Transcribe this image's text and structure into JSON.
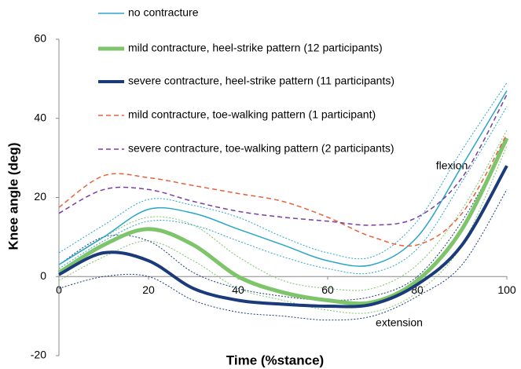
{
  "chart_data": {
    "type": "line",
    "xlabel": "Time (%stance)",
    "ylabel": "Knee angle (deg)",
    "xlim": [
      0,
      100
    ],
    "xticks": [
      0,
      20,
      40,
      60,
      80,
      100
    ],
    "ylim": [
      -20,
      60
    ],
    "yticks": [
      -20,
      0,
      20,
      40,
      60
    ],
    "annotations": [
      "flexion",
      "extension"
    ],
    "x": [
      0,
      10,
      20,
      30,
      40,
      50,
      60,
      70,
      80,
      90,
      100
    ],
    "series": [
      {
        "color": "#2aa5c9",
        "width": 1,
        "dash": "dotted",
        "values": [
          6,
          13,
          19.5,
          18,
          15,
          10,
          6,
          5,
          14,
          32,
          49
        ]
      },
      {
        "color": "#2aa5c9",
        "width": 1,
        "dash": "dotted",
        "values": [
          2,
          9,
          14,
          13,
          9,
          5,
          2,
          1,
          7,
          24,
          43
        ]
      },
      {
        "color": "#7dc46b",
        "width": 1,
        "dash": "dotted",
        "values": [
          3,
          10,
          15,
          13,
          5,
          -1,
          -3,
          -3,
          3,
          17,
          37
        ]
      },
      {
        "color": "#7dc46b",
        "width": 1,
        "dash": "dotted",
        "values": [
          -1,
          5,
          9,
          4,
          -3,
          -6,
          -8.5,
          -9,
          -4,
          8,
          33
        ]
      },
      {
        "color": "#1a3a7a",
        "width": 1,
        "dash": "dotted",
        "values": [
          3,
          10,
          9,
          1,
          -3,
          -5,
          -6,
          -5,
          0,
          14,
          34
        ]
      },
      {
        "color": "#1a3a7a",
        "width": 1,
        "dash": "dotted",
        "values": [
          -3,
          0,
          0,
          -6,
          -9,
          -10,
          -11,
          -10,
          -5,
          3,
          22
        ]
      },
      {
        "name": "no contracture",
        "color": "#2aa5c9",
        "width": 1.5,
        "dash": "solid",
        "values": [
          3,
          10,
          17,
          16,
          12,
          8,
          4,
          3,
          10,
          28,
          47
        ]
      },
      {
        "name": "mild contracture, heel-strike pattern (12 participants)",
        "color": "#7dc46b",
        "width": 5,
        "dash": "solid",
        "values": [
          1,
          8,
          12,
          8,
          0,
          -4,
          -6,
          -6.5,
          -1,
          12,
          35
        ]
      },
      {
        "name": "severe contracture, heel-strike pattern (11 participants)",
        "color": "#1a3a7a",
        "width": 4,
        "dash": "solid",
        "values": [
          0.5,
          6,
          4,
          -3,
          -6,
          -7,
          -7.5,
          -7,
          -2,
          8,
          28
        ]
      },
      {
        "name": "mild contracture, toe-walking pattern (1 participant)",
        "color": "#e8603c",
        "width": 1.5,
        "dash": "dashed",
        "values": [
          17.5,
          25.5,
          25,
          23,
          21,
          19,
          15,
          10,
          8,
          16,
          36
        ]
      },
      {
        "name": "severe contracture, toe-walking pattern (2 participants)",
        "color": "#7b3fa0",
        "width": 1.5,
        "dash": "dashed",
        "values": [
          16,
          22,
          22,
          19,
          16.5,
          15,
          14,
          13,
          15,
          25,
          46
        ]
      }
    ]
  }
}
